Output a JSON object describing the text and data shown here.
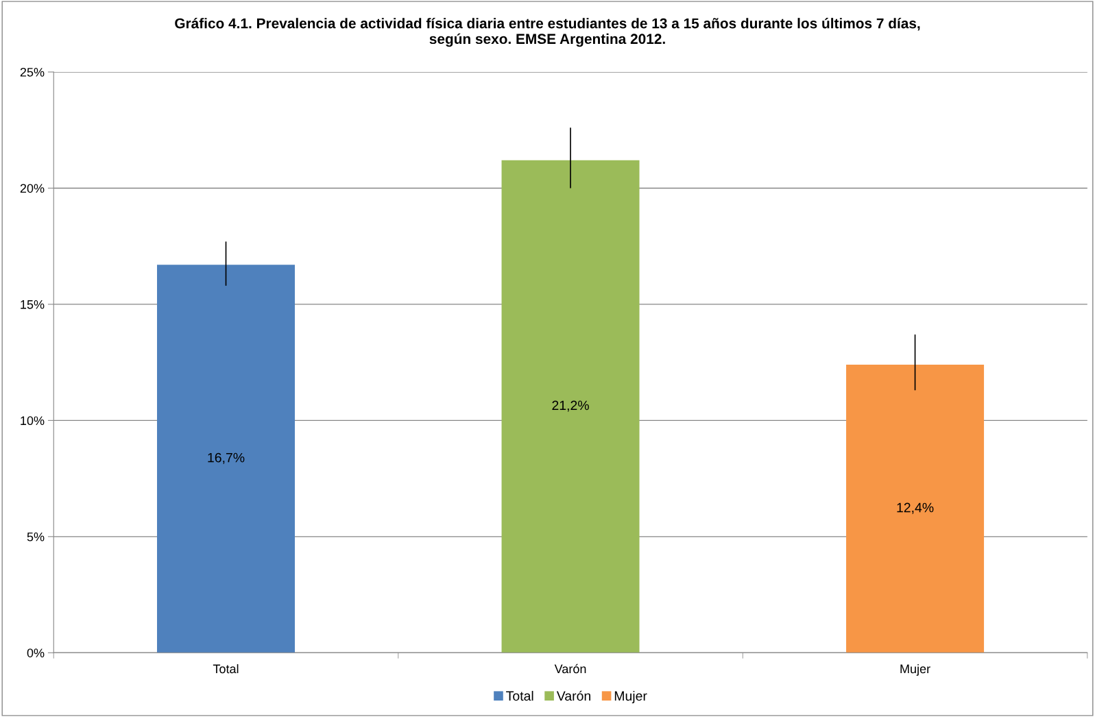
{
  "chart_data": {
    "type": "bar",
    "title": "Gráfico 4.1. Prevalencia de actividad física diaria entre estudiantes de 13 a 15 años durante los últimos 7 días,\nsegún sexo. EMSE Argentina 2012.",
    "categories": [
      "Total",
      "Varón",
      "Mujer"
    ],
    "series": [
      {
        "name": "Total",
        "color": "#4f81bd",
        "values": [
          16.7,
          null,
          null
        ],
        "errors": [
          [
            15.8,
            17.7
          ],
          null,
          null
        ],
        "value_labels": [
          "16,7%",
          null,
          null
        ]
      },
      {
        "name": "Varón",
        "color": "#9bbb59",
        "values": [
          null,
          21.2,
          null
        ],
        "errors": [
          null,
          [
            20.0,
            22.6
          ],
          null
        ],
        "value_labels": [
          null,
          "21,2%",
          null
        ]
      },
      {
        "name": "Mujer",
        "color": "#f79646",
        "values": [
          null,
          null,
          12.4
        ],
        "errors": [
          null,
          null,
          [
            11.3,
            13.7
          ]
        ],
        "value_labels": [
          null,
          null,
          "12,4%"
        ]
      }
    ],
    "ylim": [
      0,
      25
    ],
    "yticks": [
      {
        "value": 0,
        "label": "0%"
      },
      {
        "value": 5,
        "label": "5%"
      },
      {
        "value": 10,
        "label": "10%"
      },
      {
        "value": 15,
        "label": "15%"
      },
      {
        "value": 20,
        "label": "20%"
      },
      {
        "value": 25,
        "label": "25%"
      }
    ],
    "grid": "y",
    "legend": "bottom"
  }
}
